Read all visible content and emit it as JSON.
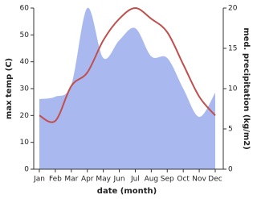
{
  "chart_data": {
    "type": "line-area",
    "x_label": "date (month)",
    "y_label": "max temp (C)",
    "y2_label": "med. precipitation (kg/m2)",
    "categories": [
      "Jan",
      "Feb",
      "Mar",
      "Apr",
      "May",
      "Jun",
      "Jul",
      "Aug",
      "Sep",
      "Oct",
      "Nov",
      "Dec"
    ],
    "series": [
      {
        "name": "max temp",
        "type": "line",
        "color": "#c0504d",
        "values": [
          20,
          18,
          31,
          36,
          48,
          56,
          60,
          56,
          51,
          39,
          27,
          20
        ]
      },
      {
        "name": "med. precipitation",
        "type": "area",
        "axis": "y2",
        "color": "#aab8f0",
        "values": [
          8.7,
          9,
          10.5,
          20,
          13.8,
          16,
          17.5,
          14,
          13.8,
          10,
          6.5,
          9.5
        ]
      }
    ],
    "ylim": [
      0,
      60
    ],
    "yticks": [
      0,
      10,
      20,
      30,
      40,
      50,
      60
    ],
    "y2lim": [
      0,
      20
    ],
    "y2ticks": [
      0,
      5,
      10,
      15,
      20
    ]
  }
}
